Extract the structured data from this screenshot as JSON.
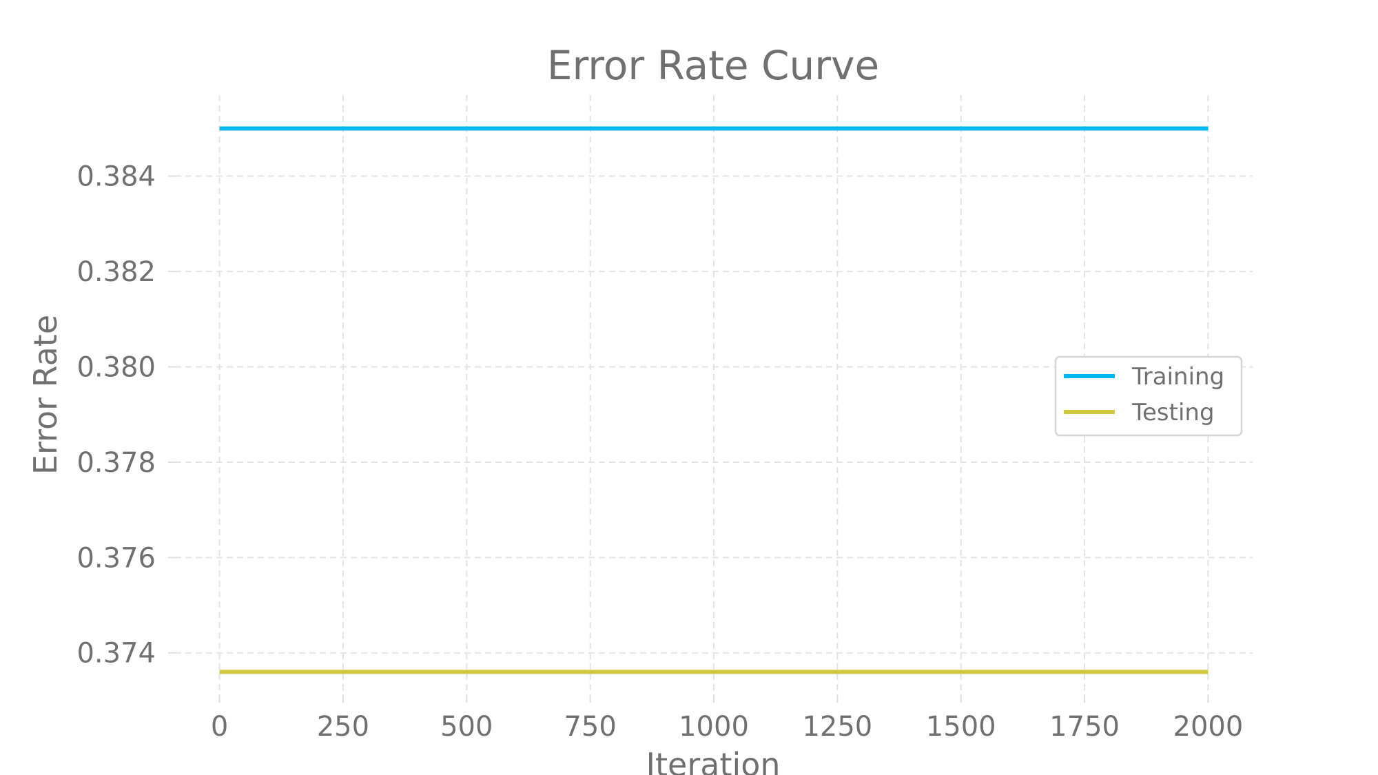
{
  "chart_data": {
    "type": "line",
    "title": "Error Rate Curve",
    "xlabel": "Iteration",
    "ylabel": "Error Rate",
    "xlim": [
      -90,
      2090
    ],
    "ylim": [
      0.3731,
      0.3857
    ],
    "xticks": [
      0,
      250,
      500,
      750,
      1000,
      1250,
      1500,
      1750,
      2000
    ],
    "xtick_labels": [
      "0",
      "250",
      "500",
      "750",
      "1000",
      "1250",
      "1500",
      "1750",
      "2000"
    ],
    "yticks": [
      0.374,
      0.376,
      0.378,
      0.38,
      0.382,
      0.384
    ],
    "ytick_labels": [
      "0.374",
      "0.376",
      "0.378",
      "0.380",
      "0.382",
      "0.384"
    ],
    "grid": true,
    "legend_position": "right",
    "series": [
      {
        "name": "Training",
        "color": "#00b8f0",
        "x": [
          0,
          250,
          500,
          750,
          1000,
          1250,
          1500,
          1750,
          2000
        ],
        "y": [
          0.385,
          0.385,
          0.385,
          0.385,
          0.385,
          0.385,
          0.385,
          0.385,
          0.385
        ]
      },
      {
        "name": "Testing",
        "color": "#d0c840",
        "x": [
          0,
          250,
          500,
          750,
          1000,
          1250,
          1500,
          1750,
          2000
        ],
        "y": [
          0.3736,
          0.3736,
          0.3736,
          0.3736,
          0.3736,
          0.3736,
          0.3736,
          0.3736,
          0.3736
        ]
      }
    ]
  }
}
